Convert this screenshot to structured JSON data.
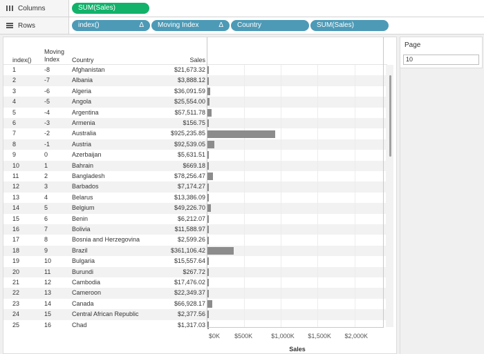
{
  "columns_shelf": {
    "label": "Columns",
    "pills": [
      {
        "text": "SUM(Sales)"
      }
    ]
  },
  "rows_shelf": {
    "label": "Rows",
    "pills": [
      {
        "text": "index()",
        "delta": "Δ"
      },
      {
        "text": "Moving Index",
        "delta": "Δ"
      },
      {
        "text": "Country"
      },
      {
        "text": "SUM(Sales)"
      }
    ]
  },
  "table": {
    "headers": {
      "index": "index()",
      "moving_line1": "Moving",
      "moving_line2": "Index",
      "country": "Country",
      "sales": "Sales"
    },
    "rows": [
      {
        "index": "1",
        "moving": "-8",
        "country": "Afghanistan",
        "sales": "$21,673.32"
      },
      {
        "index": "2",
        "moving": "-7",
        "country": "Albania",
        "sales": "$3,888.12"
      },
      {
        "index": "3",
        "moving": "-6",
        "country": "Algeria",
        "sales": "$36,091.59"
      },
      {
        "index": "4",
        "moving": "-5",
        "country": "Angola",
        "sales": "$25,554.00"
      },
      {
        "index": "5",
        "moving": "-4",
        "country": "Argentina",
        "sales": "$57,511.78"
      },
      {
        "index": "6",
        "moving": "-3",
        "country": "Armenia",
        "sales": "$156.75"
      },
      {
        "index": "7",
        "moving": "-2",
        "country": "Australia",
        "sales": "$925,235.85"
      },
      {
        "index": "8",
        "moving": "-1",
        "country": "Austria",
        "sales": "$92,539.05"
      },
      {
        "index": "9",
        "moving": "0",
        "country": "Azerbaijan",
        "sales": "$5,631.51"
      },
      {
        "index": "10",
        "moving": "1",
        "country": "Bahrain",
        "sales": "$669.18"
      },
      {
        "index": "11",
        "moving": "2",
        "country": "Bangladesh",
        "sales": "$78,256.47"
      },
      {
        "index": "12",
        "moving": "3",
        "country": "Barbados",
        "sales": "$7,174.27"
      },
      {
        "index": "13",
        "moving": "4",
        "country": "Belarus",
        "sales": "$13,386.09"
      },
      {
        "index": "14",
        "moving": "5",
        "country": "Belgium",
        "sales": "$49,226.70"
      },
      {
        "index": "15",
        "moving": "6",
        "country": "Benin",
        "sales": "$6,212.07"
      },
      {
        "index": "16",
        "moving": "7",
        "country": "Bolivia",
        "sales": "$11,588.97"
      },
      {
        "index": "17",
        "moving": "8",
        "country": "Bosnia and Herzegovina",
        "sales": "$2,599.26"
      },
      {
        "index": "18",
        "moving": "9",
        "country": "Brazil",
        "sales": "$361,106.42"
      },
      {
        "index": "19",
        "moving": "10",
        "country": "Bulgaria",
        "sales": "$15,557.64"
      },
      {
        "index": "20",
        "moving": "11",
        "country": "Burundi",
        "sales": "$267.72"
      },
      {
        "index": "21",
        "moving": "12",
        "country": "Cambodia",
        "sales": "$17,476.02"
      },
      {
        "index": "22",
        "moving": "13",
        "country": "Cameroon",
        "sales": "$22,349.37"
      },
      {
        "index": "23",
        "moving": "14",
        "country": "Canada",
        "sales": "$66,928.17"
      },
      {
        "index": "24",
        "moving": "15",
        "country": "Central African Republic",
        "sales": "$2,377.56"
      },
      {
        "index": "25",
        "moving": "16",
        "country": "Chad",
        "sales": "$1,317.03"
      }
    ]
  },
  "chart_data": {
    "type": "bar",
    "orientation": "horizontal",
    "categories": [
      "Afghanistan",
      "Albania",
      "Algeria",
      "Angola",
      "Argentina",
      "Armenia",
      "Australia",
      "Austria",
      "Azerbaijan",
      "Bahrain",
      "Bangladesh",
      "Barbados",
      "Belarus",
      "Belgium",
      "Benin",
      "Bolivia",
      "Bosnia and Herzegovina",
      "Brazil",
      "Bulgaria",
      "Burundi",
      "Cambodia",
      "Cameroon",
      "Canada",
      "Central African Republic",
      "Chad"
    ],
    "values": [
      21673.32,
      3888.12,
      36091.59,
      25554.0,
      57511.78,
      156.75,
      925235.85,
      92539.05,
      5631.51,
      669.18,
      78256.47,
      7174.27,
      13386.09,
      49226.7,
      6212.07,
      11588.97,
      2599.26,
      361106.42,
      15557.64,
      267.72,
      17476.02,
      22349.37,
      66928.17,
      2377.56,
      1317.03
    ],
    "xlabel": "Sales",
    "xlim": [
      0,
      2400000
    ],
    "ticks": [
      {
        "value": 0,
        "label": "$0K"
      },
      {
        "value": 500000,
        "label": "$500K"
      },
      {
        "value": 1000000,
        "label": "$1,000K"
      },
      {
        "value": 1500000,
        "label": "$1,500K"
      },
      {
        "value": 2000000,
        "label": "$2,000K"
      }
    ]
  },
  "colors": {
    "bar": "#8c8c8c",
    "pill_green": "#12b26b",
    "pill_blue": "#4d9ab6"
  },
  "page_filter": {
    "title": "Page",
    "value": "10"
  }
}
